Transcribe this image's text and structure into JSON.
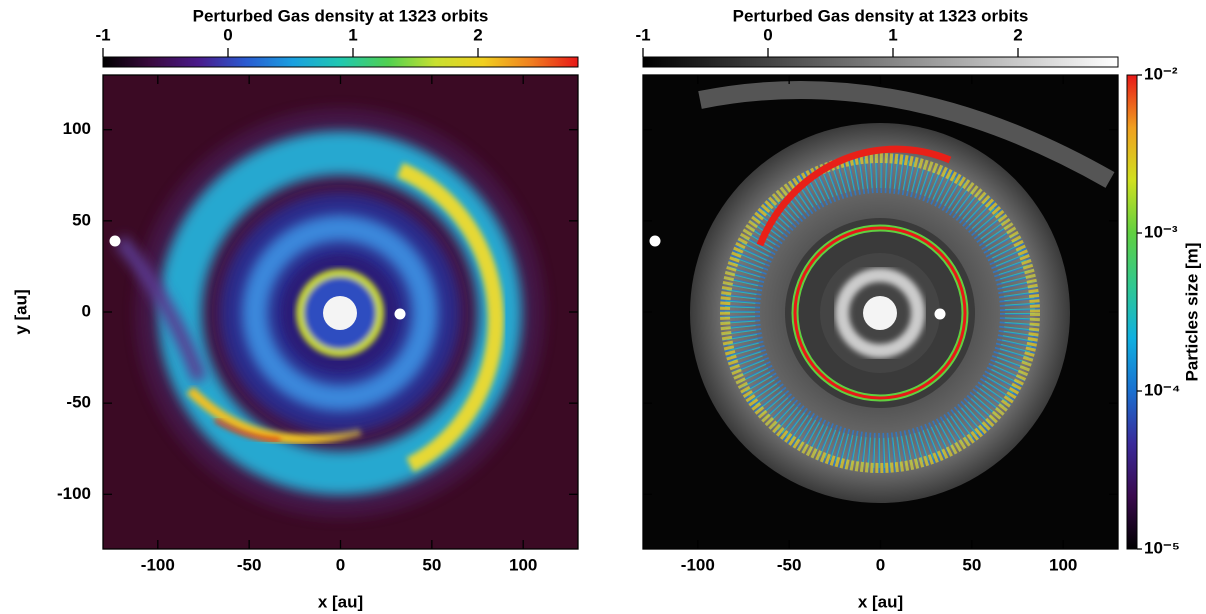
{
  "chart_data": [
    {
      "type": "image",
      "title": "Perturbed Gas density at 1323 orbits",
      "colorbar": {
        "lim": [
          -1,
          2.8
        ],
        "ticks": [
          -1,
          0,
          1,
          2
        ],
        "colors": [
          "#000000",
          "#3a0a3e",
          "#4a1a8a",
          "#2a5ad0",
          "#1aa0e0",
          "#20c8b0",
          "#50d050",
          "#c8e030",
          "#f0d020",
          "#f08020",
          "#e81818"
        ]
      },
      "xlabel": "x [au]",
      "ylabel": "y [au]",
      "xlim": [
        -130,
        130
      ],
      "ylim": [
        -130,
        130
      ],
      "xticks": [
        -100,
        -50,
        0,
        50,
        100
      ],
      "yticks": [
        -100,
        -50,
        0,
        50,
        100
      ],
      "show_ytick_labels": true
    },
    {
      "type": "image",
      "title": "Perturbed Gas density at 1323 orbits",
      "colorbar": {
        "lim": [
          -1,
          2.8
        ],
        "ticks": [
          -1,
          0,
          1,
          2
        ],
        "colors": [
          "#000000",
          "#ffffff"
        ]
      },
      "xlabel": "x [au]",
      "xlim": [
        -130,
        130
      ],
      "ylim": [
        -130,
        130
      ],
      "xticks": [
        -100,
        -50,
        0,
        50,
        100
      ],
      "yticks": [
        -100,
        -50,
        0,
        50,
        100
      ],
      "show_ytick_labels": false,
      "size_colorbar": {
        "label": "Particles size [m]",
        "log": true,
        "lim": [
          1e-05,
          0.01
        ],
        "ticks": [
          {
            "value": 1e-05,
            "label": "10⁻⁵"
          },
          {
            "value": 0.0001,
            "label": "10⁻⁴"
          },
          {
            "value": 0.001,
            "label": "10⁻³"
          },
          {
            "value": 0.01,
            "label": "10⁻²"
          }
        ],
        "colors": [
          "#000000",
          "#3a0a4e",
          "#3a2a9a",
          "#1a70d0",
          "#10b0e0",
          "#30c890",
          "#60d040",
          "#d0e020",
          "#f0a020",
          "#e81818"
        ]
      }
    }
  ]
}
